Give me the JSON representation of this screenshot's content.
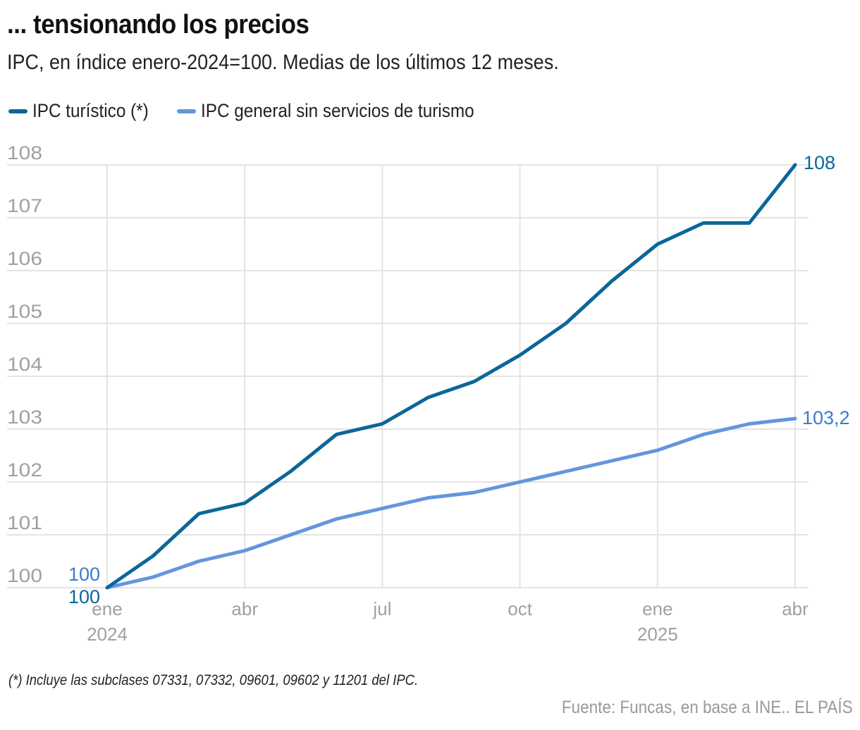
{
  "header": {
    "title": "... tensionando los precios",
    "subtitle": "IPC, en índice enero-2024=100. Medias de los últimos 12 meses."
  },
  "legend": [
    {
      "label": "IPC turístico (*)",
      "color": "#0A6799"
    },
    {
      "label": "IPC general sin servicios de turismo",
      "color": "#6396DC"
    }
  ],
  "chart_data": {
    "type": "line",
    "title": "... tensionando los precios",
    "subtitle": "IPC, en índice enero-2024=100. Medias de los últimos 12 meses.",
    "xlabel": "",
    "ylabel": "",
    "x": [
      "ene 2024",
      "feb 2024",
      "mar 2024",
      "abr 2024",
      "may 2024",
      "jun 2024",
      "jul 2024",
      "ago 2024",
      "sep 2024",
      "oct 2024",
      "nov 2024",
      "dic 2024",
      "ene 2025",
      "feb 2025",
      "mar 2025",
      "abr 2025"
    ],
    "x_ticks": [
      {
        "index": 0,
        "label": "ene",
        "year": "2024"
      },
      {
        "index": 3,
        "label": "abr",
        "year": ""
      },
      {
        "index": 6,
        "label": "jul",
        "year": ""
      },
      {
        "index": 9,
        "label": "oct",
        "year": ""
      },
      {
        "index": 12,
        "label": "ene",
        "year": "2025"
      },
      {
        "index": 15,
        "label": "abr",
        "year": ""
      }
    ],
    "y_ticks": [
      100,
      101,
      102,
      103,
      104,
      105,
      106,
      107,
      108
    ],
    "ylim": [
      100,
      108
    ],
    "grid": true,
    "legend_position": "top-left",
    "series": [
      {
        "name": "IPC turístico (*)",
        "color": "#0A6799",
        "values": [
          100,
          100.6,
          101.4,
          101.6,
          102.2,
          102.9,
          103.1,
          103.6,
          103.9,
          104.4,
          105.0,
          105.8,
          106.5,
          106.9,
          106.9,
          108.0
        ],
        "start_label": "100",
        "end_label": "108"
      },
      {
        "name": "IPC general sin servicios de turismo",
        "color": "#6396DC",
        "values": [
          100,
          100.2,
          100.5,
          100.7,
          101.0,
          101.3,
          101.5,
          101.7,
          101.8,
          102.0,
          102.2,
          102.4,
          102.6,
          102.9,
          103.1,
          103.2
        ],
        "start_label": "100",
        "end_label": "103,2"
      }
    ]
  },
  "footer": {
    "footnote": "(*) Incluye las subclases 07331, 07332, 09601, 09602 y 11201 del IPC.",
    "source": "Fuente: Funcas, en base a INE.. EL PAÍS"
  }
}
